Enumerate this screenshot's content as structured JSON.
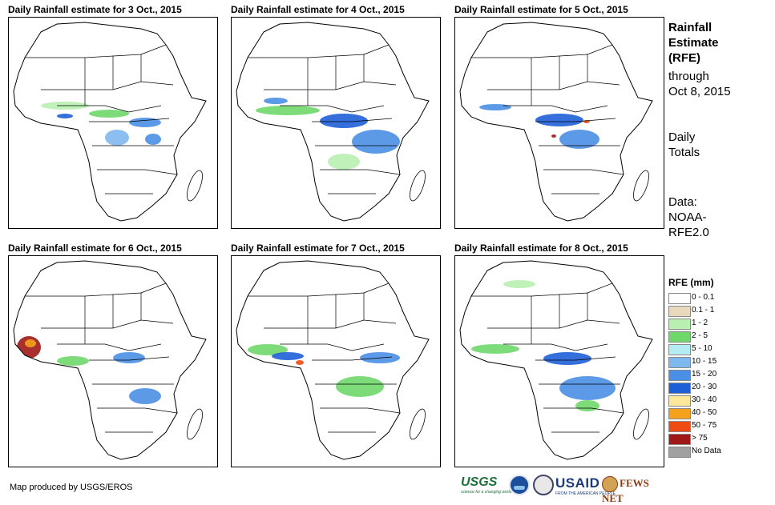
{
  "panels": [
    {
      "title": "Daily Rainfall estimate for 3 Oct., 2015"
    },
    {
      "title": "Daily Rainfall estimate for 4 Oct., 2015"
    },
    {
      "title": "Daily Rainfall estimate for 5 Oct., 2015"
    },
    {
      "title": "Daily Rainfall estimate for 6 Oct., 2015"
    },
    {
      "title": "Daily Rainfall estimate for 7 Oct., 2015"
    },
    {
      "title": "Daily Rainfall estimate for 8 Oct., 2015"
    }
  ],
  "sidebar": {
    "heading_1": "Rainfall",
    "heading_2": "Estimate",
    "heading_3": "(RFE)",
    "through_1": "through",
    "through_2": "Oct 8, 2015",
    "daily_1": "Daily",
    "daily_2": "Totals",
    "data_1": "Data:",
    "data_2": "NOAA-",
    "data_3": "RFE2.0"
  },
  "legend": {
    "title": "RFE (mm)",
    "items": [
      {
        "label": "0 - 0.1",
        "color": "#ffffff"
      },
      {
        "label": "0.1 - 1",
        "color": "#e8d9bd"
      },
      {
        "label": "1 - 2",
        "color": "#b8f0b0"
      },
      {
        "label": "2 - 5",
        "color": "#6fd86a"
      },
      {
        "label": "5 - 10",
        "color": "#b4ecf4"
      },
      {
        "label": "10 - 15",
        "color": "#7fb8ee"
      },
      {
        "label": "15 - 20",
        "color": "#4a8fe6"
      },
      {
        "label": "20 - 30",
        "color": "#1e5fd8"
      },
      {
        "label": "30 - 40",
        "color": "#fde89a"
      },
      {
        "label": "40 - 50",
        "color": "#f4a21c"
      },
      {
        "label": "50 - 75",
        "color": "#f04a14"
      },
      {
        "label": "> 75",
        "color": "#a01818"
      },
      {
        "label": "No Data",
        "color": "#a0a0a0"
      }
    ]
  },
  "footer": {
    "credit": "Map produced by USGS/EROS"
  },
  "logos": {
    "usgs": "USGS",
    "usgs_tagline": "science for a changing world",
    "usaid": "USAID",
    "usaid_tagline": "FROM THE AMERICAN PEOPLE",
    "fews": "FEWS NET"
  }
}
